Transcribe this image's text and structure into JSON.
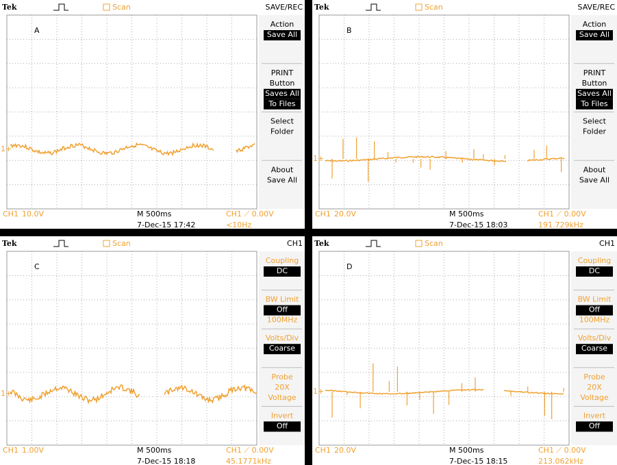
{
  "panels": [
    {
      "label": "A",
      "header": {
        "brand": "Tek",
        "mode": "Scan",
        "menu_title": "SAVE/REC"
      },
      "marker": "1+",
      "menu": [
        {
          "label": [
            "Action"
          ],
          "value": [
            "Save All"
          ]
        },
        {
          "label": [
            "PRINT",
            "Button"
          ],
          "value": [
            "Saves All",
            "To Files"
          ]
        },
        {
          "label": [
            "Select",
            "Folder"
          ]
        },
        {
          "label": [
            "About",
            "Save All"
          ]
        }
      ],
      "footer": {
        "channel": "CH1",
        "volts": "10.0V",
        "timebase": "M 500ms",
        "trigger": "CH1 ⟋ 0.00V",
        "date": "7-Dec-15 17:42",
        "frequency": "<10Hz"
      }
    },
    {
      "label": "B",
      "header": {
        "brand": "Tek",
        "mode": "Scan",
        "menu_title": "SAVE/REC"
      },
      "marker": "1+",
      "menu": [
        {
          "label": [
            "Action"
          ],
          "value": [
            "Save All"
          ]
        },
        {
          "label": [
            "PRINT",
            "Button"
          ],
          "value": [
            "Saves All",
            "To Files"
          ]
        },
        {
          "label": [
            "Select",
            "Folder"
          ]
        },
        {
          "label": [
            "About",
            "Save All"
          ]
        }
      ],
      "footer": {
        "channel": "CH1",
        "volts": "20.0V",
        "timebase": "M 500ms",
        "trigger": "CH1 ⟋ 0.00V",
        "date": "7-Dec-15 18:03",
        "frequency": "191.729kHz"
      }
    },
    {
      "label": "C",
      "header": {
        "brand": "Tek",
        "mode": "Scan",
        "menu_title": "CH1"
      },
      "marker": "1+",
      "menu": [
        {
          "label": [
            "Coupling"
          ],
          "value": [
            "DC"
          ]
        },
        {
          "label": [
            "BW Limit"
          ],
          "value": [
            "Off"
          ],
          "sub": [
            "100MHz"
          ]
        },
        {
          "label": [
            "Volts/Div"
          ],
          "value": [
            "Coarse"
          ]
        },
        {
          "label": [
            "Probe",
            "20X",
            "Voltage"
          ]
        },
        {
          "label": [
            "Invert"
          ],
          "value": [
            "Off"
          ]
        }
      ],
      "footer": {
        "channel": "CH1",
        "volts": "1.00V",
        "timebase": "M 500ms",
        "trigger": "CH1 ⟋ 0.00V",
        "date": "7-Dec-15 18:18",
        "frequency": "45.1771kHz"
      }
    },
    {
      "label": "D",
      "header": {
        "brand": "Tek",
        "mode": "Scan",
        "menu_title": "CH1"
      },
      "marker": "1+",
      "menu": [
        {
          "label": [
            "Coupling"
          ],
          "value": [
            "DC"
          ]
        },
        {
          "label": [
            "BW Limit"
          ],
          "value": [
            "Off"
          ],
          "sub": [
            "100MHz"
          ]
        },
        {
          "label": [
            "Volts/Div"
          ],
          "value": [
            "Coarse"
          ]
        },
        {
          "label": [
            "Probe",
            "20X",
            "Voltage"
          ]
        },
        {
          "label": [
            "Invert"
          ],
          "value": [
            "Off"
          ]
        }
      ],
      "footer": {
        "channel": "CH1",
        "volts": "20.0V",
        "timebase": "M 500ms",
        "trigger": "CH1 ⟋ 0.00V",
        "date": "7-Dec-15 18:15",
        "frequency": "213.062kHz"
      }
    }
  ]
}
